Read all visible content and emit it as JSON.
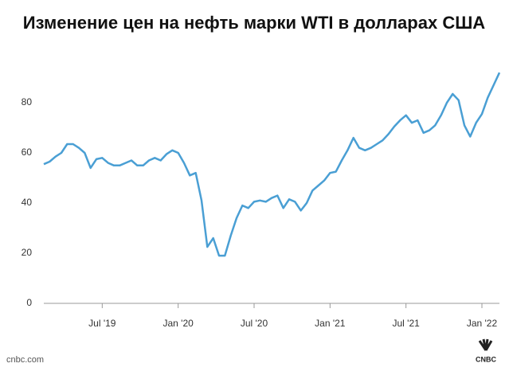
{
  "chart_data": {
    "type": "line",
    "title": "Изменение цен на нефть марки WTI в долларах США",
    "categories": [
      null,
      null,
      null,
      null,
      null,
      null,
      null,
      null,
      null,
      null,
      "Jul '19",
      null,
      null,
      null,
      null,
      null,
      null,
      null,
      null,
      null,
      null,
      null,
      null,
      "Jan '20",
      null,
      null,
      null,
      null,
      null,
      null,
      null,
      null,
      null,
      null,
      null,
      null,
      "Jul '20",
      null,
      null,
      null,
      null,
      null,
      null,
      null,
      null,
      null,
      null,
      null,
      null,
      "Jan '21",
      null,
      null,
      null,
      null,
      null,
      null,
      null,
      null,
      null,
      null,
      null,
      null,
      "Jul '21",
      null,
      null,
      null,
      null,
      null,
      null,
      null,
      null,
      null,
      null,
      null,
      null,
      "Jan '22",
      null,
      null,
      null
    ],
    "series": [
      {
        "name": "WTI",
        "color": "#4a9fd4",
        "values": [
          55.5,
          56.5,
          58.5,
          60,
          63.5,
          63.5,
          62,
          60,
          54,
          57.5,
          58,
          56,
          55,
          55,
          56,
          57,
          55,
          55,
          57,
          58,
          57,
          59.5,
          61,
          60,
          56,
          51,
          52,
          41,
          22.5,
          26,
          19,
          19,
          27,
          34,
          39,
          38,
          40.5,
          41,
          40.5,
          42,
          43,
          38,
          41.5,
          40.5,
          37,
          40,
          45,
          47,
          49,
          52,
          52.5,
          57,
          61,
          66,
          62,
          61,
          62,
          63.5,
          65,
          67.5,
          70.5,
          73,
          75,
          72,
          73,
          68,
          69,
          71,
          75,
          80,
          83.5,
          81,
          71,
          66.5,
          72,
          75.5,
          82,
          87,
          92
        ]
      }
    ],
    "ylim": [
      0,
      100
    ],
    "yticks": [
      0,
      20,
      40,
      60,
      80
    ],
    "source": "cnbc.com",
    "logo": "CNBC"
  }
}
